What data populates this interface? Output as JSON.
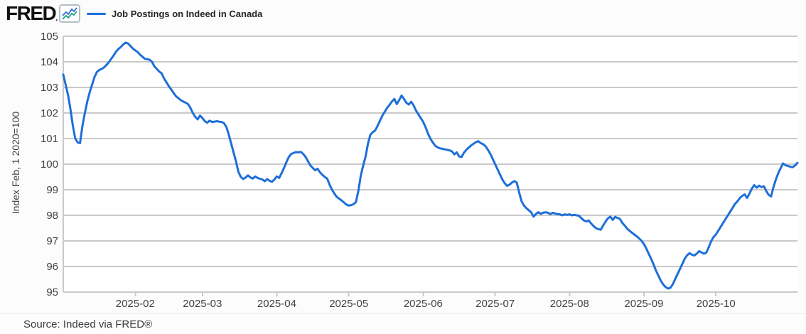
{
  "header": {
    "logo_text": "FRED",
    "logo_mark": "."
  },
  "legend": {
    "label": "Job Postings on Indeed in Canada"
  },
  "footer": {
    "source_text": "Source: Indeed via FRED®"
  },
  "chart_data": {
    "type": "line",
    "title": "Job Postings on Indeed in Canada",
    "xlabel": "",
    "ylabel": "Index Feb, 1 2020=100",
    "ylim": [
      95,
      105
    ],
    "y_ticks": [
      105,
      104,
      103,
      102,
      101,
      100,
      99,
      98,
      97,
      96,
      95
    ],
    "x_ticks": [
      "2025-02",
      "2025-03",
      "2025-04",
      "2025-05",
      "2025-06",
      "2025-07",
      "2025-08",
      "2025-09",
      "2025-10"
    ],
    "grid": "horizontal",
    "grid_color": "#c9c9c9",
    "tick_label_color": "#424242",
    "plot_background": "#ffffff",
    "legend_position": "top-left",
    "series": [
      {
        "name": "Job Postings on Indeed in Canada",
        "color": "#1e6fd8",
        "frequency": "daily",
        "start_date": "2025-01-02",
        "end_date": "2025-11-04",
        "values": [
          103.5,
          103.1,
          102.7,
          102.15,
          101.5,
          101.0,
          100.85,
          100.82,
          101.5,
          102.0,
          102.45,
          102.8,
          103.1,
          103.4,
          103.6,
          103.68,
          103.72,
          103.78,
          103.88,
          103.98,
          104.12,
          104.25,
          104.4,
          104.5,
          104.58,
          104.68,
          104.75,
          104.72,
          104.62,
          104.52,
          104.45,
          104.38,
          104.28,
          104.2,
          104.12,
          104.1,
          104.08,
          104.0,
          103.82,
          103.72,
          103.62,
          103.55,
          103.35,
          103.2,
          103.05,
          102.92,
          102.78,
          102.65,
          102.58,
          102.5,
          102.45,
          102.4,
          102.35,
          102.2,
          102.0,
          101.85,
          101.75,
          101.9,
          101.8,
          101.68,
          101.62,
          101.7,
          101.65,
          101.66,
          101.68,
          101.66,
          101.65,
          101.6,
          101.45,
          101.15,
          100.8,
          100.45,
          100.1,
          99.7,
          99.5,
          99.42,
          99.48,
          99.56,
          99.48,
          99.44,
          99.52,
          99.46,
          99.43,
          99.4,
          99.33,
          99.42,
          99.35,
          99.31,
          99.4,
          99.52,
          99.46,
          99.65,
          99.85,
          100.08,
          100.28,
          100.4,
          100.44,
          100.47,
          100.46,
          100.48,
          100.4,
          100.28,
          100.12,
          99.95,
          99.85,
          99.76,
          99.82,
          99.68,
          99.58,
          99.5,
          99.44,
          99.2,
          99.0,
          98.85,
          98.72,
          98.65,
          98.58,
          98.5,
          98.42,
          98.38,
          98.4,
          98.44,
          98.52,
          98.95,
          99.55,
          99.95,
          100.3,
          100.8,
          101.15,
          101.25,
          101.32,
          101.5,
          101.7,
          101.9,
          102.05,
          102.2,
          102.32,
          102.45,
          102.55,
          102.35,
          102.5,
          102.68,
          102.55,
          102.4,
          102.33,
          102.44,
          102.3,
          102.1,
          101.95,
          101.8,
          101.65,
          101.45,
          101.2,
          101.0,
          100.85,
          100.72,
          100.66,
          100.62,
          100.6,
          100.58,
          100.56,
          100.54,
          100.5,
          100.38,
          100.46,
          100.3,
          100.28,
          100.45,
          100.56,
          100.65,
          100.73,
          100.8,
          100.86,
          100.9,
          100.82,
          100.78,
          100.7,
          100.56,
          100.4,
          100.2,
          100.0,
          99.8,
          99.6,
          99.4,
          99.25,
          99.15,
          99.2,
          99.28,
          99.34,
          99.28,
          98.9,
          98.55,
          98.38,
          98.28,
          98.2,
          98.12,
          97.95,
          98.05,
          98.12,
          98.06,
          98.1,
          98.12,
          98.1,
          98.05,
          98.1,
          98.07,
          98.05,
          98.04,
          98.0,
          98.04,
          98.02,
          98.04,
          98.0,
          98.02,
          98.0,
          97.98,
          97.88,
          97.8,
          97.76,
          97.8,
          97.68,
          97.58,
          97.5,
          97.46,
          97.44,
          97.6,
          97.75,
          97.88,
          97.95,
          97.82,
          97.94,
          97.9,
          97.86,
          97.7,
          97.6,
          97.48,
          97.4,
          97.32,
          97.25,
          97.18,
          97.1,
          97.0,
          96.88,
          96.7,
          96.5,
          96.3,
          96.08,
          95.85,
          95.65,
          95.45,
          95.3,
          95.2,
          95.14,
          95.16,
          95.3,
          95.5,
          95.7,
          95.9,
          96.1,
          96.3,
          96.44,
          96.52,
          96.46,
          96.43,
          96.5,
          96.6,
          96.55,
          96.5,
          96.54,
          96.75,
          96.98,
          97.15,
          97.25,
          97.4,
          97.55,
          97.7,
          97.85,
          98.0,
          98.15,
          98.3,
          98.45,
          98.55,
          98.68,
          98.76,
          98.82,
          98.68,
          98.85,
          99.05,
          99.18,
          99.08,
          99.16,
          99.1,
          99.14,
          98.95,
          98.8,
          98.74,
          99.1,
          99.4,
          99.65,
          99.85,
          100.03,
          99.96,
          99.93,
          99.9,
          99.88,
          99.95,
          100.05
        ]
      }
    ]
  }
}
